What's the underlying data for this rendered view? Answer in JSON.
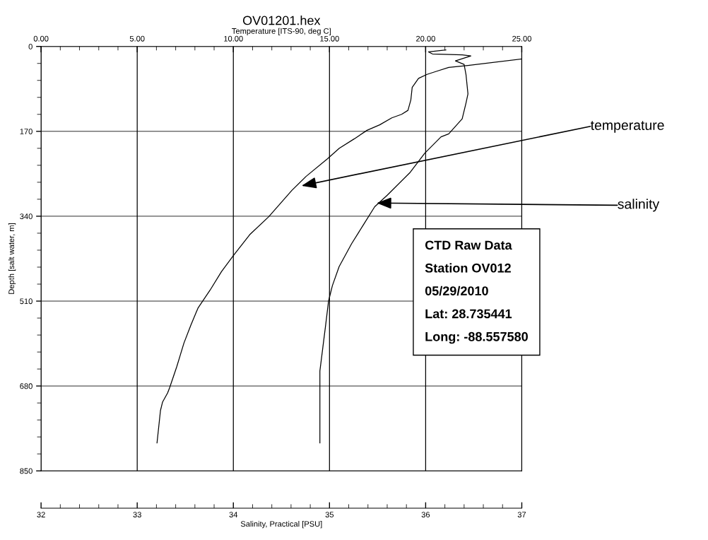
{
  "chart_data": {
    "type": "line",
    "title": "OV01201.hex",
    "xlabel": "Salinity, Practical [PSU]",
    "x2label": "Temperature [ITS-90, deg C]",
    "ylabel": "Depth [salt water, m]",
    "xlim": [
      32,
      37
    ],
    "xticks": [
      32,
      33,
      34,
      35,
      36,
      37
    ],
    "x2lim": [
      0,
      25
    ],
    "x2ticks": [
      {
        "value": 0,
        "label": "0.00"
      },
      {
        "value": 5,
        "label": "5.00"
      },
      {
        "value": 10,
        "label": "10.00"
      },
      {
        "value": 15,
        "label": "15.00"
      },
      {
        "value": 20,
        "label": "20.00"
      },
      {
        "value": 25,
        "label": "25.00"
      }
    ],
    "ylim": [
      850,
      0
    ],
    "yticks": [
      0,
      170,
      340,
      510,
      680,
      850
    ],
    "grid": true,
    "marker": "none",
    "line_style": "solid",
    "series": [
      {
        "color": "#000000",
        "axis": "x2",
        "x": [
          25.0,
          22.2,
          21.2,
          20.55,
          20.07,
          19.63,
          19.3,
          19.23,
          19.08,
          18.75,
          18.24,
          17.61,
          16.95,
          16.29,
          15.51,
          14.89,
          13.79,
          13.05,
          11.84,
          10.85,
          10.0,
          9.38,
          8.79,
          8.16,
          8.05,
          7.79,
          7.43,
          7.06,
          6.69,
          6.58,
          6.32,
          6.21,
          6.03
        ],
        "values": [
          25,
          38,
          42,
          50,
          56,
          64,
          82,
          107,
          128,
          136,
          143,
          157,
          168,
          185,
          204,
          225,
          260,
          288,
          341,
          377,
          419,
          451,
          488,
          524,
          534,
          558,
          594,
          641,
          683,
          694,
          712,
          729,
          794
        ]
      },
      {
        "color": "#000000",
        "x": [
          36.21,
          36.03,
          36.07,
          36.38,
          36.47,
          36.31,
          36.4,
          36.42,
          36.44,
          36.42,
          36.38,
          36.24,
          36.16,
          35.99,
          35.84,
          35.6,
          35.47,
          35.35,
          35.23,
          35.1,
          35.03,
          34.99,
          34.96,
          34.93,
          34.9,
          34.9,
          34.9
        ],
        "values": [
          7,
          11,
          15,
          17,
          19,
          29,
          36,
          57,
          95,
          113,
          145,
          175,
          181,
          214,
          252,
          298,
          321,
          358,
          395,
          441,
          479,
          510,
          558,
          604,
          650,
          719,
          794
        ]
      }
    ],
    "annotations": [
      "temperature",
      "salinity",
      "CTD Raw Data",
      "Station OV012",
      "05/29/2010",
      "Lat: 28.735441",
      "Long: -88.557580"
    ]
  }
}
